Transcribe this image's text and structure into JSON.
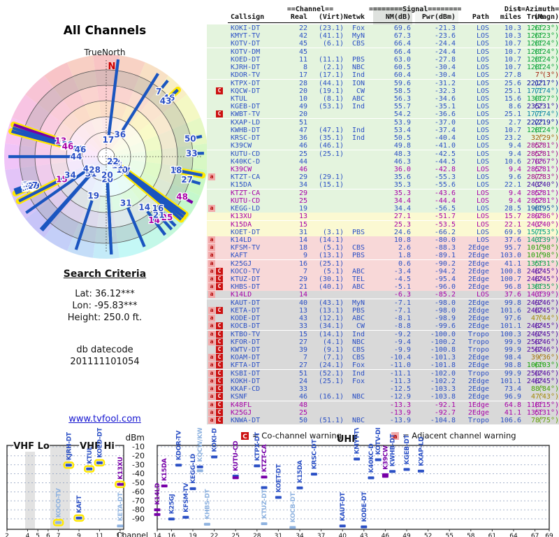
{
  "radar": {
    "title": "All Channels",
    "north_label": "TrueNorth",
    "n_marker": "N"
  },
  "search": {
    "title": "Search Criteria",
    "lat": "Lat: 36.12***",
    "lon": "Lon: -95.83***",
    "height": "Height: 250.0 ft.",
    "db_label": "db datecode",
    "db_code": "201111101054"
  },
  "link": {
    "text": "www.tvfool.com"
  },
  "legend": {
    "c_symbol": "C",
    "c_text": "= Co-channel warning",
    "a_symbol": "a",
    "a_text": "= Adjacent channel warning"
  },
  "colors": {
    "blue": "#2b50c5",
    "magenta": "#a800a8",
    "light_blue": "#8fb3e0",
    "purple": "#7700a8",
    "green_bg": "#e4f4de",
    "yellow_bg": "#fbf9d2",
    "pink_bg": "#f8d8d8",
    "gray_bg": "#d9d9d9",
    "warn_red": "#cc1111",
    "warn_pink": "#f2aaaa",
    "halo_yellow": "#ffe800",
    "link": "#1515d0"
  },
  "table": {
    "group_headers": {
      "channel": "==Channel==",
      "signal": "========Signal========",
      "dist": "Dist",
      "azimuth": "==Azimuth=="
    },
    "columns": [
      "Callsign",
      "Real",
      "(Virt)",
      "Netwk",
      "NM(dB)",
      "Pwr(dBm)",
      "Path",
      "miles",
      "True",
      "(Magn)"
    ],
    "rows": [
      [
        "KOKI-DT",
        22,
        "23.1",
        "Fox",
        69.6,
        -21.3,
        "LOS",
        10.3,
        126,
        123,
        ""
      ],
      [
        "KMYT-TV",
        42,
        "41.1",
        "MyN",
        67.3,
        -23.6,
        "LOS",
        10.3,
        126,
        123,
        "y"
      ],
      [
        "KOTV-DT",
        45,
        "6.1",
        "CBS",
        66.4,
        -24.4,
        "LOS",
        10.7,
        128,
        124,
        "y"
      ],
      [
        "KOTV-DM",
        45,
        "",
        "",
        66.4,
        -24.4,
        "LOS",
        10.7,
        128,
        124,
        "y"
      ],
      [
        "KOED-DT",
        11,
        "11.1",
        "PBS",
        63.0,
        -27.8,
        "LOS",
        10.7,
        128,
        124,
        "y"
      ],
      [
        "KJRH-DT",
        8,
        "2.1",
        "NBC",
        60.5,
        -30.4,
        "LOS",
        10.7,
        128,
        124,
        "y"
      ],
      [
        "KDOR-TV",
        17,
        "17.1",
        "Ind",
        60.4,
        -30.4,
        "LOS",
        27.8,
        7,
        3,
        ""
      ],
      [
        "KTPX-DT",
        28,
        "44.1",
        "ION",
        59.6,
        -31.2,
        "LOS",
        25.6,
        221,
        217,
        ""
      ],
      [
        "KQCW-DT",
        20,
        "19.1",
        "CW",
        58.5,
        -32.3,
        "LOS",
        25.1,
        177,
        174,
        "C"
      ],
      [
        "KTUL",
        10,
        "8.1",
        "ABC",
        56.3,
        -34.6,
        "LOS",
        15.6,
        130,
        127,
        "y"
      ],
      [
        "KGEB-DT",
        49,
        "53.1",
        "Ind",
        55.7,
        -35.1,
        "LOS",
        8.6,
        235,
        231,
        ""
      ],
      [
        "KWBT-TV",
        20,
        "",
        "",
        54.2,
        -36.6,
        "LOS",
        25.1,
        177,
        174,
        "C"
      ],
      [
        "KXAP-LD",
        51,
        "",
        "",
        53.9,
        -37.0,
        "LOS",
        2.7,
        222,
        219,
        ""
      ],
      [
        "KWHB-DT",
        47,
        "47.1",
        "Ind",
        53.4,
        -37.4,
        "LOS",
        10.7,
        128,
        124,
        "y"
      ],
      [
        "KRSC-DT",
        36,
        "35.1",
        "Ind",
        50.5,
        -40.4,
        "LOS",
        23.2,
        32,
        29,
        ""
      ],
      [
        "K39CW",
        46,
        "46.1",
        "",
        49.8,
        -41.0,
        "LOS",
        9.4,
        285,
        281,
        ""
      ],
      [
        "KUTU-CD",
        25,
        "25.1",
        "",
        48.3,
        -42.5,
        "LOS",
        9.4,
        285,
        281,
        ""
      ],
      [
        "K40KC-D",
        44,
        "",
        "",
        46.3,
        -44.5,
        "LOS",
        10.6,
        270,
        267,
        ""
      ],
      [
        "K39CW",
        46,
        "",
        "",
        36.0,
        -42.8,
        "LOS",
        9.4,
        285,
        281,
        "my"
      ],
      [
        "KTZT-CA",
        29,
        "29.1",
        "",
        35.6,
        -55.3,
        "LOS",
        9.6,
        287,
        283,
        "a"
      ],
      [
        "K15DA",
        34,
        "15.1",
        "",
        35.3,
        -55.6,
        "LOS",
        22.1,
        243,
        240,
        ""
      ],
      [
        "KTZT-CA",
        29,
        "",
        "",
        35.3,
        -43.6,
        "LOS",
        9.4,
        285,
        281,
        "my"
      ],
      [
        "KUTU-CD",
        25,
        "",
        "",
        34.4,
        -44.4,
        "LOS",
        9.4,
        285,
        281,
        "my"
      ],
      [
        "KEGG-LD",
        19,
        "",
        "",
        34.4,
        -56.5,
        "LOS",
        28.5,
        198,
        195,
        "a"
      ],
      [
        "K13XU",
        13,
        "",
        "",
        27.1,
        -51.7,
        "LOS",
        15.7,
        289,
        286,
        "my"
      ],
      [
        "K15DA",
        15,
        "",
        "",
        25.3,
        -53.5,
        "LOS",
        22.1,
        243,
        240,
        "my"
      ],
      [
        "KOET-DT",
        31,
        "3.1",
        "PBS",
        24.6,
        -66.2,
        "LOS",
        69.9,
        157,
        153,
        ""
      ],
      [
        "K14LD",
        14,
        "14.1",
        "",
        10.8,
        -80.0,
        "LOS",
        37.6,
        143,
        139,
        "a"
      ],
      [
        "KFSM-TV",
        18,
        "5.1",
        "CBS",
        2.6,
        -88.3,
        "2Edge",
        95.7,
        101,
        98,
        "ay"
      ],
      [
        "KAFT",
        9,
        "13.1",
        "PBS",
        1.8,
        -89.1,
        "2Edge",
        103.0,
        101,
        98,
        "ay"
      ],
      [
        "K25GJ",
        16,
        "25.1",
        "",
        0.6,
        -90.2,
        "2Edge",
        41.1,
        135,
        131,
        "a"
      ],
      [
        "KOCO-TV",
        7,
        "5.1",
        "ABC",
        -3.4,
        -94.2,
        "2Edge",
        100.8,
        248,
        245,
        "aCy"
      ],
      [
        "KTUZ-DT",
        29,
        "30.1",
        "TEL",
        -4.5,
        -95.4,
        "2Edge",
        100.7,
        248,
        245,
        "aC"
      ],
      [
        "KHBS-DT",
        21,
        "40.1",
        "ABC",
        -5.1,
        -96.0,
        "2Edge",
        96.8,
        138,
        135,
        "aC"
      ],
      [
        "K14LD",
        14,
        "",
        "",
        -6.3,
        -85.2,
        "LOS",
        37.6,
        143,
        139,
        "ma"
      ],
      [
        "KAUT-DT",
        40,
        "43.1",
        "MyN",
        -7.1,
        -98.0,
        "2Edge",
        99.8,
        249,
        246,
        ""
      ],
      [
        "KETA-DT",
        13,
        "13.1",
        "PBS",
        -7.1,
        -98.0,
        "2Edge",
        101.6,
        248,
        245,
        "aC"
      ],
      [
        "KODE-DT",
        43,
        "12.1",
        "ABC",
        -8.1,
        -98.9,
        "2Edge",
        97.6,
        47,
        44,
        "ay"
      ],
      [
        "KOCB-DT",
        33,
        "34.1",
        "CW",
        -8.8,
        -99.6,
        "2Edge",
        101.1,
        248,
        245,
        "aC"
      ],
      [
        "KTBO-TV",
        15,
        "14.1",
        "Ind",
        -9.2,
        -100.0,
        "Tropo",
        100.3,
        249,
        245,
        "aC"
      ],
      [
        "KFOR-DT",
        27,
        "4.1",
        "NBC",
        -9.4,
        -100.2,
        "Tropo",
        99.9,
        250,
        246,
        "aC"
      ],
      [
        "KWTV-DT",
        39,
        "9.1",
        "CBS",
        -9.9,
        -100.8,
        "Tropo",
        99.9,
        250,
        246,
        "C"
      ],
      [
        "KOAM-DT",
        7,
        "7.1",
        "CBS",
        -10.4,
        -101.3,
        "2Edge",
        98.4,
        39,
        36,
        "aC"
      ],
      [
        "KFTA-DT",
        27,
        "24.1",
        "Fox",
        -11.0,
        -101.8,
        "2Edge",
        98.8,
        106,
        103,
        "aC"
      ],
      [
        "KSBI-DT",
        51,
        "52.1",
        "Ind",
        -11.1,
        -102.0,
        "Tropo",
        99.9,
        250,
        246,
        "aC"
      ],
      [
        "KOKH-DT",
        24,
        "25.1",
        "Fox",
        -11.3,
        -102.2,
        "2Edge",
        101.1,
        248,
        245,
        "aC"
      ],
      [
        "KKAF-CD",
        33,
        "",
        "",
        -12.5,
        -103.3,
        "2Edge",
        73.4,
        88,
        84,
        "aC"
      ],
      [
        "KSNF",
        46,
        "16.1",
        "NBC",
        -12.9,
        -103.8,
        "2Edge",
        96.9,
        47,
        43,
        "aCy"
      ],
      [
        "K48FL",
        48,
        "",
        "",
        -13.3,
        -92.1,
        "1Edge",
        64.8,
        118,
        115,
        "maC"
      ],
      [
        "K25GJ",
        25,
        "",
        "",
        -13.9,
        -92.7,
        "2Edge",
        41.1,
        135,
        131,
        "maC"
      ],
      [
        "KNWA-DT",
        50,
        "51.1",
        "NBC",
        -13.9,
        -104.8,
        "Tropo",
        106.6,
        78,
        75,
        "aC"
      ]
    ]
  },
  "bottom_chart": {
    "dbm_label": "dBm",
    "channel_label": "Channel",
    "vhf_lo_label": "VHF Lo",
    "vhf_hi_label": "VHF Hi",
    "uhf_label": "UHF",
    "dbm_ticks": [
      -10,
      -20,
      -30,
      -40,
      -50,
      -60,
      -70,
      -80,
      -90
    ],
    "vhf_ticks": [
      2,
      4,
      5,
      6,
      7,
      9,
      11,
      13
    ],
    "uhf_ticks": [
      14,
      16,
      19,
      22,
      25,
      28,
      31,
      34,
      37,
      40,
      43,
      46,
      49,
      52,
      55,
      58,
      61,
      64,
      67,
      69
    ],
    "stations": [
      [
        "KOCO-TV",
        7,
        [
          [
            -94.2,
            "l"
          ]
        ],
        true,
        "l"
      ],
      [
        "KJRH-DT",
        8,
        [
          [
            -30.4,
            "b"
          ]
        ],
        true,
        "b"
      ],
      [
        "KAFT",
        9,
        [
          [
            -89.1,
            "b"
          ]
        ],
        true,
        "b"
      ],
      [
        "KTUL",
        10,
        [
          [
            -34.6,
            "b"
          ]
        ],
        true,
        "b"
      ],
      [
        "KOED-DT",
        11,
        [
          [
            -27.8,
            "b"
          ]
        ],
        true,
        "b"
      ],
      [
        "K13XU",
        13,
        [
          [
            -51.7,
            "p"
          ]
        ],
        true,
        "p"
      ],
      [
        "KETA-DT",
        13,
        [
          [
            -98.0,
            "l"
          ]
        ],
        false,
        "l"
      ],
      [
        "K14LD",
        14,
        [
          [
            -80.0,
            "p"
          ],
          [
            -85.2,
            "p"
          ]
        ],
        false,
        "p"
      ],
      [
        "K15DA",
        15,
        [
          [
            -53.5,
            "p"
          ]
        ],
        false,
        "p"
      ],
      [
        "K25GJ",
        16,
        [
          [
            -90.2,
            "b"
          ]
        ],
        false,
        "b"
      ],
      [
        "KDOR-TV",
        17,
        [
          [
            -30.4,
            "b"
          ]
        ],
        false,
        "b"
      ],
      [
        "KFSM-TV",
        18,
        [
          [
            -88.3,
            "b"
          ]
        ],
        false,
        "b"
      ],
      [
        "KEGG-LD",
        19,
        [
          [
            -56.5,
            "b"
          ]
        ],
        false,
        "b"
      ],
      [
        "KQCW/KWBT",
        20,
        [
          [
            -32.3,
            "b"
          ],
          [
            -36.6,
            "l"
          ]
        ],
        false,
        "l"
      ],
      [
        "KHBS-DT",
        21,
        [
          [
            -96.0,
            "l"
          ]
        ],
        false,
        "l"
      ],
      [
        "KOKI-DT",
        22,
        [
          [
            -21.3,
            "b"
          ]
        ],
        false,
        "b"
      ],
      [
        "KUTU-CD",
        25,
        [
          [
            -42.5,
            "b"
          ],
          [
            -44.4,
            "p"
          ]
        ],
        false,
        "p"
      ],
      [
        "KTPX-DT",
        28,
        [
          [
            -31.2,
            "b"
          ]
        ],
        false,
        "b"
      ],
      [
        "KTUZ-DT",
        29,
        [
          [
            -95.4,
            "l"
          ]
        ],
        false,
        "l"
      ],
      [
        "KTZT-CA",
        29,
        [
          [
            -43.6,
            "p"
          ],
          [
            -55.3,
            "b"
          ]
        ],
        false,
        "p"
      ],
      [
        "KOET-DT",
        31,
        [
          [
            -66.2,
            "b"
          ]
        ],
        false,
        "b"
      ],
      [
        "KOCB-DT",
        33,
        [
          [
            -99.6,
            "l"
          ]
        ],
        false,
        "l"
      ],
      [
        "K15DA",
        34,
        [
          [
            -55.6,
            "b"
          ]
        ],
        false,
        "b"
      ],
      [
        "KRSC-DT",
        36,
        [
          [
            -40.4,
            "b"
          ]
        ],
        false,
        "b"
      ],
      [
        "KAUT-DT",
        40,
        [
          [
            -98.0,
            "b"
          ]
        ],
        false,
        "b"
      ],
      [
        "KMYT-TV",
        42,
        [
          [
            -23.6,
            "b"
          ]
        ],
        false,
        "b"
      ],
      [
        "KODE-DT",
        43,
        [
          [
            -98.9,
            "b"
          ]
        ],
        false,
        "b"
      ],
      [
        "K40KC-D",
        44,
        [
          [
            -44.5,
            "b"
          ]
        ],
        false,
        "b"
      ],
      [
        "KOTV-DM",
        45,
        [
          [
            -24.4,
            "b"
          ]
        ],
        false,
        "b"
      ],
      [
        "K39CW",
        46,
        [
          [
            -41.0,
            "p"
          ],
          [
            -42.8,
            "p"
          ]
        ],
        false,
        "p"
      ],
      [
        "KWHB-DT",
        47,
        [
          [
            -37.4,
            "b"
          ]
        ],
        false,
        "b"
      ],
      [
        "KGEB-DT",
        49,
        [
          [
            -35.1,
            "b"
          ]
        ],
        false,
        "b"
      ],
      [
        "KXAP-LD",
        51,
        [
          [
            -37.0,
            "b"
          ]
        ],
        false,
        "b"
      ]
    ]
  }
}
